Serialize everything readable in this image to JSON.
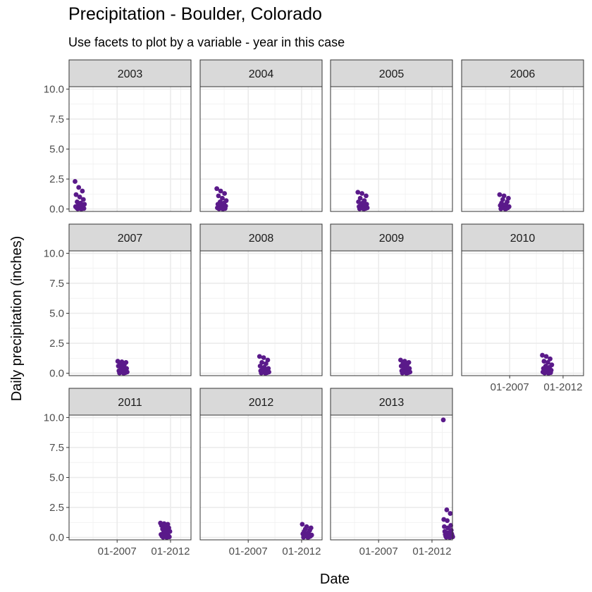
{
  "chart_data": {
    "type": "scatter",
    "title": "Precipitation - Boulder, Colorado",
    "subtitle": "Use facets to plot by a variable - year in this case",
    "xlabel": "Date",
    "ylabel": "Daily precipitation (inches)",
    "ylim": [
      -0.2,
      10.2
    ],
    "xlim": [
      "2002-07",
      "2013-12"
    ],
    "y_ticks": [
      "0.0",
      "2.5",
      "5.0",
      "7.5",
      "10.0"
    ],
    "x_ticks": [
      "01-2007",
      "01-2012"
    ],
    "point_color": "#5a1a8a",
    "facets": [
      {
        "year": "2003",
        "values": [
          2.3,
          1.8,
          1.5,
          1.2,
          1.0,
          0.8,
          0.6,
          0.5,
          0.4,
          0.3,
          0.25,
          0.2,
          0.15,
          0.1,
          0.1,
          0.05,
          0.05,
          0.02,
          0.0
        ]
      },
      {
        "year": "2004",
        "values": [
          1.7,
          1.5,
          1.3,
          1.1,
          0.9,
          0.7,
          0.6,
          0.5,
          0.4,
          0.3,
          0.25,
          0.2,
          0.15,
          0.1,
          0.1,
          0.05,
          0.02,
          0.0
        ]
      },
      {
        "year": "2005",
        "values": [
          1.4,
          1.3,
          1.1,
          0.9,
          0.7,
          0.6,
          0.5,
          0.4,
          0.3,
          0.25,
          0.2,
          0.15,
          0.1,
          0.1,
          0.05,
          0.02,
          0.0
        ]
      },
      {
        "year": "2006",
        "values": [
          1.2,
          1.1,
          0.9,
          0.8,
          0.6,
          0.5,
          0.4,
          0.3,
          0.25,
          0.2,
          0.15,
          0.1,
          0.1,
          0.05,
          0.02,
          0.0
        ]
      },
      {
        "year": "2007",
        "values": [
          1.0,
          0.95,
          0.9,
          0.8,
          0.7,
          0.6,
          0.5,
          0.4,
          0.3,
          0.25,
          0.2,
          0.15,
          0.1,
          0.1,
          0.05,
          0.02,
          0.0
        ]
      },
      {
        "year": "2008",
        "values": [
          1.4,
          1.3,
          1.1,
          0.9,
          0.8,
          0.6,
          0.5,
          0.4,
          0.3,
          0.25,
          0.2,
          0.15,
          0.1,
          0.1,
          0.05,
          0.02,
          0.0
        ]
      },
      {
        "year": "2009",
        "values": [
          1.1,
          1.0,
          0.9,
          0.8,
          0.7,
          0.6,
          0.5,
          0.4,
          0.3,
          0.25,
          0.2,
          0.15,
          0.1,
          0.1,
          0.05,
          0.02,
          0.0
        ]
      },
      {
        "year": "2010",
        "values": [
          1.5,
          1.4,
          1.2,
          1.0,
          0.9,
          0.7,
          0.6,
          0.5,
          0.4,
          0.3,
          0.25,
          0.2,
          0.15,
          0.1,
          0.1,
          0.05,
          0.02,
          0.0
        ]
      },
      {
        "year": "2011",
        "values": [
          1.2,
          1.15,
          1.1,
          1.0,
          0.9,
          0.8,
          0.7,
          0.6,
          0.5,
          0.4,
          0.3,
          0.25,
          0.2,
          0.15,
          0.1,
          0.1,
          0.05,
          0.02,
          0.0
        ]
      },
      {
        "year": "2012",
        "values": [
          1.1,
          0.9,
          0.8,
          0.7,
          0.6,
          0.5,
          0.4,
          0.3,
          0.25,
          0.2,
          0.15,
          0.1,
          0.1,
          0.05,
          0.02,
          0.0
        ]
      },
      {
        "year": "2013",
        "values": [
          9.8,
          2.3,
          2.0,
          1.5,
          1.4,
          1.0,
          0.9,
          0.8,
          0.6,
          0.5,
          0.4,
          0.3,
          0.25,
          0.2,
          0.15,
          0.1,
          0.1,
          0.05,
          0.02,
          0.0
        ]
      }
    ]
  }
}
